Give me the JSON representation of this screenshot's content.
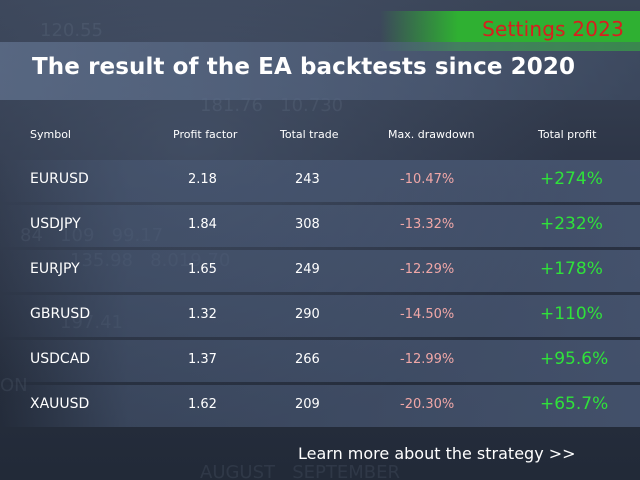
{
  "badge": {
    "text": "Settings 2023"
  },
  "title": "The result of the EA backtests since 2020",
  "table": {
    "headers": [
      "Symbol",
      "Profit factor",
      "Total trade",
      "Max. drawdown",
      "Total profit"
    ],
    "rows": [
      {
        "symbol": "EURUSD",
        "profit_factor": "2.18",
        "total_trade": "243",
        "max_drawdown": "-10.47%",
        "total_profit": "+274%"
      },
      {
        "symbol": "USDJPY",
        "profit_factor": "1.84",
        "total_trade": "308",
        "max_drawdown": "-13.32%",
        "total_profit": "+232%"
      },
      {
        "symbol": "EURJPY",
        "profit_factor": "1.65",
        "total_trade": "249",
        "max_drawdown": "-12.29%",
        "total_profit": "+178%"
      },
      {
        "symbol": "GBRUSD",
        "profit_factor": "1.32",
        "total_trade": "290",
        "max_drawdown": "-14.50%",
        "total_profit": "+110%"
      },
      {
        "symbol": "USDCAD",
        "profit_factor": "1.37",
        "total_trade": "266",
        "max_drawdown": "-12.99%",
        "total_profit": "+95.6%"
      },
      {
        "symbol": "XAUUSD",
        "profit_factor": "1.62",
        "total_trade": "209",
        "max_drawdown": "-20.30%",
        "total_profit": "+65.7%"
      }
    ]
  },
  "footer": {
    "link_text": "Learn more about the strategy >>"
  },
  "colors": {
    "badge_bg": "#2fb032",
    "badge_text": "#d81e1e",
    "profit": "#2fe23a",
    "drawdown": "#f0a7a7"
  }
}
